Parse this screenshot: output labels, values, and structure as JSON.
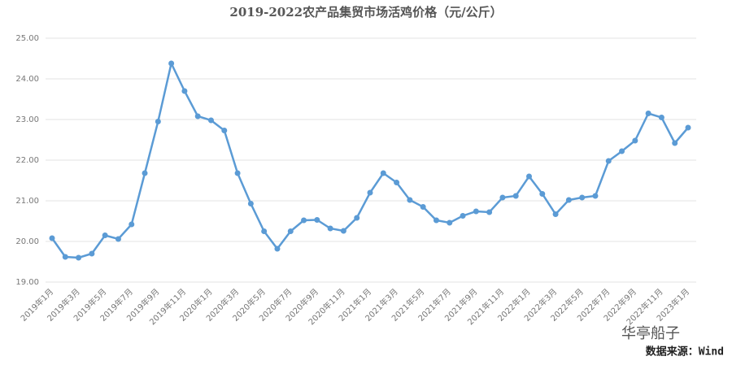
{
  "chart_data": {
    "type": "line",
    "title": "2019-2022农产品集贸市场活鸡价格（元/公斤）",
    "watermark": "华亭船子",
    "source": "数据来源：Wind",
    "categories": [
      "2019年1月",
      null,
      "2019年3月",
      null,
      "2019年5月",
      null,
      "2019年7月",
      null,
      "2019年9月",
      null,
      "2019年11月",
      null,
      "2020年1月",
      null,
      "2020年3月",
      null,
      "2020年5月",
      null,
      "2020年7月",
      null,
      "2020年9月",
      null,
      "2020年11月",
      null,
      "2021年1月",
      null,
      "2021年3月",
      null,
      "2021年5月",
      null,
      "2021年7月",
      null,
      "2021年9月",
      null,
      "2021年11月",
      null,
      "2022年1月",
      null,
      "2022年3月",
      null,
      "2022年5月",
      null,
      "2022年7月",
      null,
      "2022年9月",
      null,
      "2022年11月",
      null,
      "2023年1月"
    ],
    "series": [
      {
        "name": "活鸡价格",
        "color": "#5b9bd5",
        "values": [
          20.08,
          19.62,
          19.6,
          19.7,
          20.15,
          20.06,
          20.42,
          21.68,
          22.95,
          24.38,
          23.7,
          23.08,
          22.98,
          22.73,
          21.68,
          20.93,
          20.25,
          19.82,
          20.25,
          20.52,
          20.53,
          20.32,
          20.26,
          20.58,
          21.2,
          21.68,
          21.45,
          21.02,
          20.85,
          20.52,
          20.46,
          20.63,
          20.74,
          20.72,
          21.08,
          21.12,
          21.6,
          21.17,
          20.67,
          21.02,
          21.08,
          21.12,
          21.98,
          22.22,
          22.48,
          23.15,
          23.05,
          22.42,
          22.8
        ]
      }
    ],
    "ylim": [
      19,
      25
    ],
    "yticks": [
      {
        "value": 19,
        "label": "19.00"
      },
      {
        "value": 20,
        "label": "20.00"
      },
      {
        "value": 21,
        "label": "21.00"
      },
      {
        "value": 22,
        "label": "22.00"
      },
      {
        "value": 23,
        "label": "23.00"
      },
      {
        "value": 24,
        "label": "24.00"
      },
      {
        "value": 25,
        "label": "25.00"
      }
    ],
    "grid": true
  }
}
